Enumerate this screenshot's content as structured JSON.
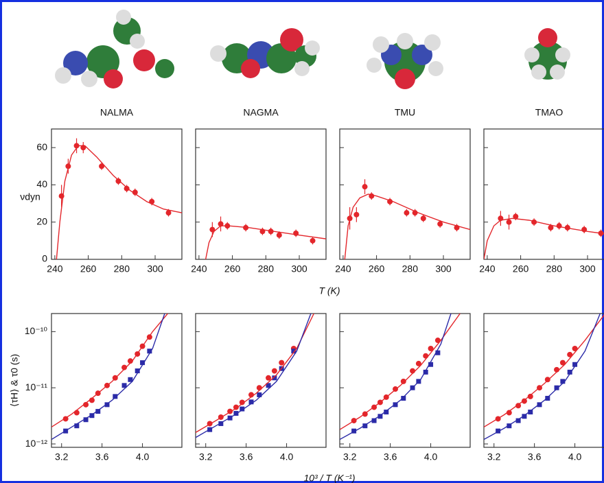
{
  "chart_data": [
    {
      "type": "scatter",
      "title": "NALMA",
      "y_label": "νdyn",
      "xlim": [
        238,
        316
      ],
      "ylim": [
        0,
        70
      ],
      "xticks": [
        240,
        260,
        280,
        300
      ],
      "yticks": [
        0,
        20,
        40,
        60
      ],
      "ytick_labels": true,
      "series": [
        {
          "style": "markers",
          "color": "#e3262b",
          "x": [
            244,
            248,
            253,
            257,
            268,
            278,
            283,
            288,
            298,
            308
          ],
          "values": [
            34,
            50,
            61,
            60,
            50,
            42,
            38,
            36,
            31,
            25
          ],
          "errors": [
            6,
            4,
            4,
            3,
            2,
            2,
            2,
            2,
            2,
            2
          ]
        },
        {
          "style": "line",
          "color": "#e3262b",
          "x": [
            241,
            243,
            246,
            250,
            254,
            258,
            265,
            275,
            285,
            295,
            305,
            316
          ],
          "values": [
            0,
            20,
            42,
            56,
            61,
            61,
            55,
            45,
            37,
            31,
            27,
            25
          ]
        }
      ]
    },
    {
      "type": "scatter",
      "title": "NAGMA",
      "x_label": "T (K)",
      "xlim": [
        238,
        316
      ],
      "ylim": [
        0,
        70
      ],
      "xticks": [
        240,
        260,
        280,
        300
      ],
      "yticks": [
        0,
        20,
        40,
        60
      ],
      "ytick_labels": false,
      "series": [
        {
          "style": "markers",
          "color": "#e3262b",
          "x": [
            248,
            253,
            257,
            268,
            278,
            283,
            288,
            298,
            308
          ],
          "values": [
            16,
            19,
            18,
            17,
            15,
            15,
            13,
            14,
            10
          ],
          "errors": [
            4,
            4,
            2,
            2,
            2,
            2,
            2,
            2,
            2
          ]
        },
        {
          "style": "line",
          "color": "#e3262b",
          "x": [
            244,
            246,
            249,
            253,
            258,
            270,
            285,
            300,
            316
          ],
          "values": [
            0,
            9,
            15,
            18,
            18,
            17,
            15,
            13,
            11
          ]
        }
      ]
    },
    {
      "type": "scatter",
      "title": "TMU",
      "xlim": [
        238,
        316
      ],
      "ylim": [
        0,
        70
      ],
      "xticks": [
        240,
        260,
        280,
        300
      ],
      "yticks": [
        0,
        20,
        40,
        60
      ],
      "ytick_labels": false,
      "series": [
        {
          "style": "markers",
          "color": "#e3262b",
          "x": [
            244,
            248,
            253,
            257,
            268,
            278,
            283,
            288,
            298,
            308
          ],
          "values": [
            22,
            24,
            39,
            34,
            31,
            25,
            25,
            22,
            19,
            17
          ],
          "errors": [
            6,
            4,
            4,
            2,
            2,
            2,
            2,
            2,
            2,
            2
          ]
        },
        {
          "style": "line",
          "color": "#e3262b",
          "x": [
            241,
            243,
            246,
            250,
            255,
            260,
            270,
            285,
            300,
            316
          ],
          "values": [
            0,
            18,
            28,
            33,
            35,
            34,
            31,
            25,
            20,
            16
          ]
        }
      ]
    },
    {
      "type": "scatter",
      "title": "TMAO",
      "xlim": [
        238,
        316
      ],
      "ylim": [
        0,
        70
      ],
      "xticks": [
        240,
        260,
        280,
        300
      ],
      "yticks": [
        0,
        20,
        40,
        60
      ],
      "ytick_labels": false,
      "series": [
        {
          "style": "markers",
          "color": "#e3262b",
          "x": [
            248,
            253,
            257,
            268,
            278,
            283,
            288,
            298,
            308
          ],
          "values": [
            22,
            20,
            23,
            20,
            17,
            18,
            17,
            16,
            14
          ],
          "errors": [
            4,
            4,
            2,
            2,
            2,
            2,
            2,
            2,
            2
          ]
        },
        {
          "style": "line",
          "color": "#e3262b",
          "x": [
            238,
            240,
            244,
            248,
            255,
            265,
            280,
            300,
            316
          ],
          "values": [
            0,
            10,
            18,
            21,
            22,
            21,
            18,
            15,
            13
          ]
        }
      ]
    },
    {
      "type": "scatter",
      "log_y": true,
      "y_label": "⟨τH⟩ & τ0 (s)",
      "xlim": [
        3.1,
        4.39
      ],
      "ylim": [
        8.7e-13,
        2.1e-10
      ],
      "xticks": [
        3.2,
        3.6,
        {
          "value": 4,
          "label": "4.0"
        }
      ],
      "yticks": [
        {
          "value": 1e-12,
          "label": "10⁻¹²"
        },
        {
          "value": 1e-11,
          "label": "10⁻¹¹"
        },
        {
          "value": 1e-10,
          "label": "10⁻¹⁰"
        }
      ],
      "ytick_labels": true,
      "series": [
        {
          "style": "markers",
          "marker": "circle",
          "color": "#e3262b",
          "x": [
            3.24,
            3.35,
            3.44,
            3.5,
            3.56,
            3.65,
            3.73,
            3.82,
            3.88,
            3.95,
            4.0,
            4.07
          ],
          "values": [
            2.8e-12,
            3.6e-12,
            5e-12,
            6e-12,
            8e-12,
            1.1e-11,
            1.5e-11,
            2.3e-11,
            3e-11,
            4e-11,
            5.5e-11,
            8e-11
          ]
        },
        {
          "style": "markers",
          "marker": "square",
          "color": "#2b2ba8",
          "x": [
            3.24,
            3.35,
            3.44,
            3.5,
            3.56,
            3.65,
            3.73,
            3.82,
            3.88,
            3.95,
            4.0,
            4.07
          ],
          "values": [
            1.7e-12,
            2.1e-12,
            2.7e-12,
            3.2e-12,
            3.8e-12,
            5e-12,
            7e-12,
            1.1e-11,
            1.4e-11,
            2e-11,
            2.8e-11,
            4.5e-11
          ]
        },
        {
          "style": "line",
          "color": "#e3262b",
          "x": [
            3.1,
            3.3,
            3.5,
            3.7,
            3.9,
            4.1,
            4.25
          ],
          "values": [
            2e-12,
            3.4e-12,
            6.5e-12,
            1.3e-11,
            3e-11,
            1e-10,
            2.1e-10
          ]
        },
        {
          "style": "line",
          "color": "#2b2ba8",
          "x": [
            3.1,
            3.3,
            3.5,
            3.7,
            3.9,
            4.1,
            4.22
          ],
          "values": [
            1.2e-12,
            2e-12,
            3.3e-12,
            6e-12,
            1.3e-11,
            5e-11,
            2.1e-10
          ]
        }
      ]
    },
    {
      "type": "scatter",
      "log_y": true,
      "x_label": "10³ / T  (K⁻¹)",
      "xlim": [
        3.1,
        4.39
      ],
      "ylim": [
        8.7e-13,
        2.1e-10
      ],
      "xticks": [
        3.2,
        3.6,
        {
          "value": 4,
          "label": "4.0"
        }
      ],
      "yticks": [
        1e-12,
        1e-11,
        1e-10
      ],
      "ytick_labels": false,
      "series": [
        {
          "style": "markers",
          "marker": "circle",
          "color": "#e3262b",
          "x": [
            3.24,
            3.35,
            3.44,
            3.5,
            3.56,
            3.65,
            3.73,
            3.82,
            3.88,
            3.95,
            4.07
          ],
          "values": [
            2.3e-12,
            3e-12,
            3.8e-12,
            4.5e-12,
            5.5e-12,
            7.5e-12,
            1e-11,
            1.5e-11,
            2e-11,
            2.8e-11,
            5e-11
          ]
        },
        {
          "style": "markers",
          "marker": "square",
          "color": "#2b2ba8",
          "x": [
            3.24,
            3.35,
            3.44,
            3.5,
            3.56,
            3.65,
            3.73,
            3.82,
            3.88,
            3.95,
            4.07
          ],
          "values": [
            1.8e-12,
            2.3e-12,
            2.9e-12,
            3.5e-12,
            4.2e-12,
            5.6e-12,
            7.5e-12,
            1.1e-11,
            1.5e-11,
            2.2e-11,
            4.5e-11
          ]
        },
        {
          "style": "line",
          "color": "#e3262b",
          "x": [
            3.1,
            3.3,
            3.5,
            3.7,
            3.9,
            4.1,
            4.27
          ],
          "values": [
            1.6e-12,
            2.6e-12,
            4.3e-12,
            8e-12,
            1.7e-11,
            5e-11,
            2.1e-10
          ]
        },
        {
          "style": "line",
          "color": "#2b2ba8",
          "x": [
            3.1,
            3.3,
            3.5,
            3.7,
            3.9,
            4.1,
            4.24
          ],
          "values": [
            1.3e-12,
            2.1e-12,
            3.4e-12,
            6e-12,
            1.3e-11,
            4.5e-11,
            2.1e-10
          ]
        }
      ]
    },
    {
      "type": "scatter",
      "log_y": true,
      "xlim": [
        3.1,
        4.39
      ],
      "ylim": [
        8.7e-13,
        2.1e-10
      ],
      "xticks": [
        3.2,
        3.6,
        {
          "value": 4,
          "label": "4.0"
        }
      ],
      "yticks": [
        1e-12,
        1e-11,
        1e-10
      ],
      "ytick_labels": false,
      "series": [
        {
          "style": "markers",
          "marker": "circle",
          "color": "#e3262b",
          "x": [
            3.24,
            3.35,
            3.44,
            3.5,
            3.56,
            3.65,
            3.73,
            3.82,
            3.88,
            3.95,
            4.0,
            4.07
          ],
          "values": [
            2.6e-12,
            3.4e-12,
            4.5e-12,
            5.5e-12,
            6.8e-12,
            9.5e-12,
            1.3e-11,
            2e-11,
            2.7e-11,
            3.7e-11,
            5e-11,
            7e-11
          ]
        },
        {
          "style": "markers",
          "marker": "square",
          "color": "#2b2ba8",
          "x": [
            3.24,
            3.35,
            3.44,
            3.5,
            3.56,
            3.65,
            3.73,
            3.82,
            3.88,
            3.95,
            4.0,
            4.07
          ],
          "values": [
            1.7e-12,
            2.1e-12,
            2.6e-12,
            3.1e-12,
            3.7e-12,
            5e-12,
            6.5e-12,
            1e-11,
            1.3e-11,
            1.9e-11,
            2.6e-11,
            4.2e-11
          ]
        },
        {
          "style": "line",
          "color": "#e3262b",
          "x": [
            3.1,
            3.3,
            3.5,
            3.7,
            3.9,
            4.1,
            4.29
          ],
          "values": [
            1.8e-12,
            3e-12,
            5.5e-12,
            1.1e-11,
            2.5e-11,
            7e-11,
            2.1e-10
          ]
        },
        {
          "style": "line",
          "color": "#2b2ba8",
          "x": [
            3.1,
            3.3,
            3.5,
            3.7,
            3.9,
            4.1,
            4.2
          ],
          "values": [
            1.2e-12,
            1.9e-12,
            3.2e-12,
            6e-12,
            1.4e-11,
            6e-11,
            2.1e-10
          ]
        }
      ]
    },
    {
      "type": "scatter",
      "log_y": true,
      "xlim": [
        3.1,
        4.39
      ],
      "ylim": [
        8.7e-13,
        2.1e-10
      ],
      "xticks": [
        3.2,
        3.6,
        {
          "value": 4,
          "label": "4.0"
        }
      ],
      "yticks": [
        1e-12,
        1e-11,
        1e-10
      ],
      "ytick_labels": false,
      "series": [
        {
          "style": "markers",
          "marker": "circle",
          "color": "#e3262b",
          "x": [
            3.24,
            3.35,
            3.44,
            3.5,
            3.56,
            3.65,
            3.73,
            3.82,
            3.88,
            3.95,
            4.0
          ],
          "values": [
            2.8e-12,
            3.6e-12,
            4.8e-12,
            5.8e-12,
            7e-12,
            1e-11,
            1.4e-11,
            2.1e-11,
            2.8e-11,
            3.9e-11,
            5e-11
          ]
        },
        {
          "style": "markers",
          "marker": "square",
          "color": "#2b2ba8",
          "x": [
            3.24,
            3.35,
            3.44,
            3.5,
            3.56,
            3.65,
            3.73,
            3.82,
            3.88,
            3.95,
            4.0
          ],
          "values": [
            1.7e-12,
            2.1e-12,
            2.6e-12,
            3.1e-12,
            3.7e-12,
            5e-12,
            6.5e-12,
            1e-11,
            1.3e-11,
            1.9e-11,
            2.6e-11
          ]
        },
        {
          "style": "line",
          "color": "#e3262b",
          "x": [
            3.1,
            3.3,
            3.5,
            3.7,
            3.9,
            4.1,
            4.3
          ],
          "values": [
            2e-12,
            3.3e-12,
            6e-12,
            1.2e-11,
            2.6e-11,
            7e-11,
            2.1e-10
          ]
        },
        {
          "style": "line",
          "color": "#2b2ba8",
          "x": [
            3.1,
            3.3,
            3.5,
            3.7,
            3.9,
            4.1,
            4.25
          ],
          "values": [
            1.2e-12,
            1.9e-12,
            3.2e-12,
            6e-12,
            1.3e-11,
            4.5e-11,
            2.1e-10
          ]
        }
      ]
    }
  ]
}
